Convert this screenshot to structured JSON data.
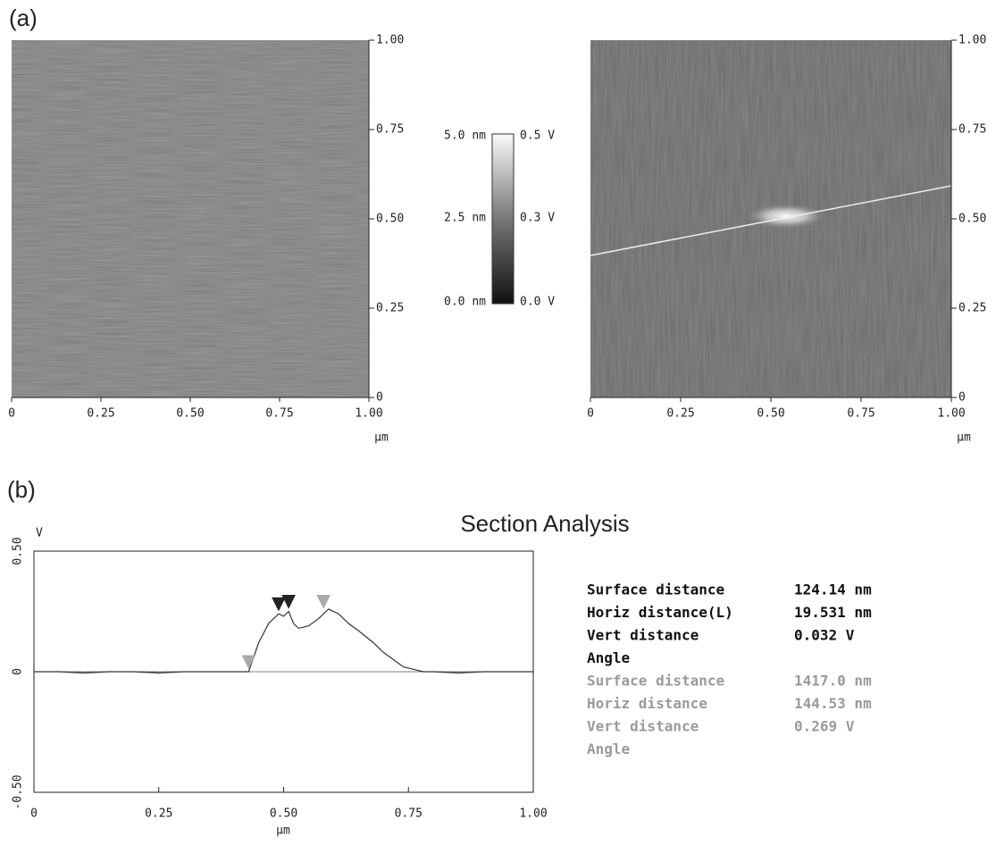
{
  "panel_a": {
    "label": "(a)",
    "images": [
      {
        "xticks": [
          0,
          0.25,
          {
            "value": 0.5,
            "label": "0.50"
          },
          0.75,
          {
            "value": 1,
            "label": "1.00"
          }
        ],
        "yticks": [
          0,
          0.25,
          {
            "value": 0.5,
            "label": "0.50"
          },
          0.75,
          {
            "value": 1,
            "label": "1.00"
          }
        ],
        "xlim": [
          0,
          1
        ],
        "ylim": [
          0,
          1
        ],
        "x_unit": "μm"
      },
      {
        "xticks": [
          0,
          0.25,
          {
            "value": 0.5,
            "label": "0.50"
          },
          0.75,
          {
            "value": 1,
            "label": "1.00"
          }
        ],
        "yticks": [
          0,
          0.25,
          {
            "value": 0.5,
            "label": "0.50"
          },
          0.75,
          {
            "value": 1,
            "label": "1.00"
          }
        ],
        "xlim": [
          0,
          1
        ],
        "ylim": [
          0,
          1
        ],
        "x_unit": "μm"
      }
    ],
    "colorbar": {
      "left_labels": [
        "5.0 nm",
        "2.5 nm",
        "0.0 nm"
      ],
      "right_labels": [
        "0.5 V",
        "0.3 V",
        "0.0 V"
      ]
    }
  },
  "panel_b": {
    "label": "(b)",
    "chart_data": {
      "type": "line",
      "title": "Section Analysis",
      "x_label": "μm",
      "y_label": "V",
      "xlim": [
        0,
        1
      ],
      "ylim": [
        -0.5,
        0.5
      ],
      "xticks": [
        {
          "value": 0,
          "label": "0"
        },
        0.25,
        {
          "value": 0.5,
          "label": "0.50"
        },
        0.75,
        {
          "value": 1,
          "label": "1.00"
        }
      ],
      "yticks": [
        {
          "value": -0.5,
          "label": "-0.50"
        },
        0,
        {
          "value": 0.5,
          "label": "0.50"
        }
      ],
      "color": "#333333",
      "x": [
        0,
        0.05,
        0.1,
        0.15,
        0.2,
        0.25,
        0.3,
        0.35,
        0.4,
        0.43,
        0.45,
        0.47,
        0.49,
        0.5,
        0.51,
        0.52,
        0.53,
        0.55,
        0.57,
        0.59,
        0.61,
        0.63,
        0.65,
        0.68,
        0.7,
        0.72,
        0.74,
        0.76,
        0.78,
        0.8,
        0.85,
        0.9,
        0.95,
        1.0
      ],
      "values": [
        0,
        0,
        -0.005,
        0,
        0,
        -0.005,
        0,
        0,
        0,
        0,
        0.12,
        0.2,
        0.24,
        0.23,
        0.25,
        0.2,
        0.18,
        0.19,
        0.22,
        0.26,
        0.24,
        0.2,
        0.17,
        0.12,
        0.08,
        0.05,
        0.02,
        0.01,
        0,
        0,
        -0.005,
        0,
        0,
        0
      ],
      "cursors": [
        {
          "x": 0.43,
          "y": 0,
          "color": "#aaaaaa"
        },
        {
          "x": 0.49,
          "y": 0.24,
          "color": "#222222"
        },
        {
          "x": 0.51,
          "y": 0.25,
          "color": "#222222"
        },
        {
          "x": 0.58,
          "y": 0.25,
          "color": "#aaaaaa"
        }
      ]
    },
    "measurements": [
      {
        "color": "#111111",
        "rows": [
          [
            "Surface distance",
            "124.14 nm"
          ],
          [
            "Horiz distance(L)",
            "19.531 nm"
          ],
          [
            "Vert distance",
            "0.032 V"
          ],
          [
            "Angle"
          ]
        ]
      },
      {
        "color": "#9a9a9a",
        "rows": [
          [
            "Surface distance",
            "1417.0 nm"
          ],
          [
            "Horiz distance",
            "144.53 nm"
          ],
          [
            "Vert distance",
            "0.269 V"
          ],
          [
            "Angle"
          ]
        ]
      }
    ]
  }
}
